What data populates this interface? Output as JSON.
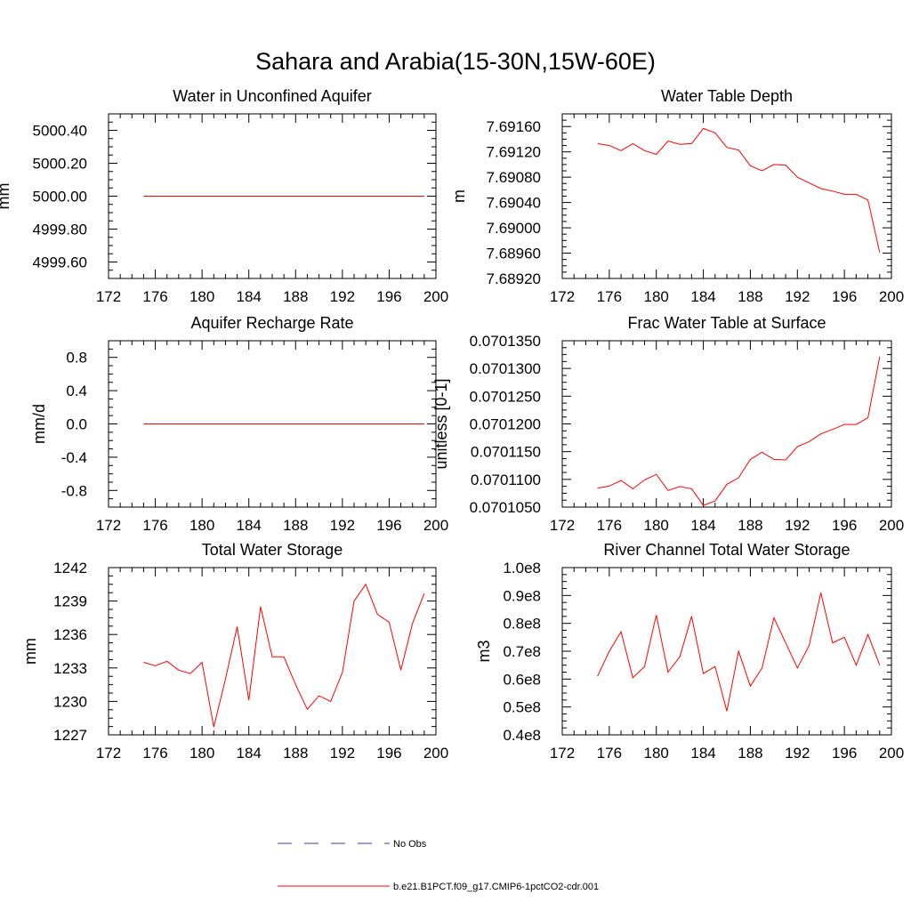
{
  "figure": {
    "title": "Sahara and Arabia(15-30N,15W-60E)"
  },
  "legend": {
    "items": [
      {
        "label": "No Obs",
        "color": "#3a3ab0",
        "style": "dashed"
      },
      {
        "label": "b.e21.B1PCT.f09_g17.CMIP6-1pctCO2-cdr.001",
        "color": "#ff0000",
        "style": "solid"
      }
    ]
  },
  "chart_data": [
    {
      "type": "line",
      "title": "Water in Unconfined Aquifer",
      "ylabel": "mm",
      "xlim": [
        172,
        200
      ],
      "xticks": [
        172,
        176,
        180,
        184,
        188,
        192,
        196,
        200
      ],
      "xtick_labels": [
        "172",
        "176",
        "180",
        "184",
        "188",
        "192",
        "196",
        "200"
      ],
      "ylim": [
        4999.5,
        5000.5
      ],
      "yticks": [
        4999.6,
        4999.8,
        5000.0,
        5000.2,
        5000.4
      ],
      "ytick_labels": [
        "4999.60",
        "4999.80",
        "5000.00",
        "5000.20",
        "5000.40"
      ],
      "x": [
        175,
        176,
        177,
        178,
        179,
        180,
        181,
        182,
        183,
        184,
        185,
        186,
        187,
        188,
        189,
        190,
        191,
        192,
        193,
        194,
        195,
        196,
        197,
        198,
        199
      ],
      "series": [
        {
          "color": "#ff0000",
          "values": [
            5000,
            5000,
            5000,
            5000,
            5000,
            5000,
            5000,
            5000,
            5000,
            5000,
            5000,
            5000,
            5000,
            5000,
            5000,
            5000,
            5000,
            5000,
            5000,
            5000,
            5000,
            5000,
            5000,
            5000,
            5000
          ]
        }
      ]
    },
    {
      "type": "line",
      "title": "Water Table Depth",
      "ylabel": "m",
      "xlim": [
        172,
        200
      ],
      "xticks": [
        172,
        176,
        180,
        184,
        188,
        192,
        196,
        200
      ],
      "xtick_labels": [
        "172",
        "176",
        "180",
        "184",
        "188",
        "192",
        "196",
        "200"
      ],
      "ylim": [
        7.6892,
        7.6918
      ],
      "yticks": [
        7.6892,
        7.6896,
        7.69,
        7.6904,
        7.6908,
        7.6912,
        7.6916
      ],
      "ytick_labels": [
        "7.68920",
        "7.68960",
        "7.69000",
        "7.69040",
        "7.69080",
        "7.69120",
        "7.69160"
      ],
      "x": [
        175,
        176,
        177,
        178,
        179,
        180,
        181,
        182,
        183,
        184,
        185,
        186,
        187,
        188,
        189,
        190,
        191,
        192,
        193,
        194,
        195,
        196,
        197,
        198,
        199
      ],
      "series": [
        {
          "color": "#ff0000",
          "values": [
            7.69133,
            7.6913,
            7.69122,
            7.69133,
            7.69122,
            7.69116,
            7.69137,
            7.69132,
            7.69133,
            7.69157,
            7.6915,
            7.69127,
            7.69123,
            7.69098,
            7.6909,
            7.691,
            7.69099,
            7.6908,
            7.69071,
            7.69062,
            7.69058,
            7.69053,
            7.69053,
            7.69044,
            7.68961
          ]
        }
      ]
    },
    {
      "type": "line",
      "title": "Aquifer Recharge Rate",
      "ylabel": "mm/d",
      "xlim": [
        172,
        200
      ],
      "xticks": [
        172,
        176,
        180,
        184,
        188,
        192,
        196,
        200
      ],
      "xtick_labels": [
        "172",
        "176",
        "180",
        "184",
        "188",
        "192",
        "196",
        "200"
      ],
      "ylim": [
        -1.0,
        1.0
      ],
      "yticks": [
        -0.8,
        -0.4,
        0.0,
        0.4,
        0.8
      ],
      "ytick_labels": [
        "-0.8",
        "-0.4",
        "0.0",
        "0.4",
        "0.8"
      ],
      "x": [
        175,
        176,
        177,
        178,
        179,
        180,
        181,
        182,
        183,
        184,
        185,
        186,
        187,
        188,
        189,
        190,
        191,
        192,
        193,
        194,
        195,
        196,
        197,
        198,
        199
      ],
      "series": [
        {
          "color": "#ff0000",
          "values": [
            0,
            0,
            0,
            0,
            0,
            0,
            0,
            0,
            0,
            0,
            0,
            0,
            0,
            0,
            0,
            0,
            0,
            0,
            0,
            0,
            0,
            0,
            0,
            0,
            0
          ]
        }
      ]
    },
    {
      "type": "line",
      "title": "Frac Water Table at Surface",
      "ylabel": "unitless [0-1]",
      "xlim": [
        172,
        200
      ],
      "xticks": [
        172,
        176,
        180,
        184,
        188,
        192,
        196,
        200
      ],
      "xtick_labels": [
        "172",
        "176",
        "180",
        "184",
        "188",
        "192",
        "196",
        "200"
      ],
      "ylim": [
        0.070105,
        0.070135
      ],
      "yticks": [
        0.070105,
        0.07011,
        0.070115,
        0.07012,
        0.070125,
        0.07013,
        0.070135
      ],
      "ytick_labels": [
        "0.0701050",
        "0.0701100",
        "0.0701150",
        "0.0701200",
        "0.0701250",
        "0.0701300",
        "0.0701350"
      ],
      "x": [
        175,
        176,
        177,
        178,
        179,
        180,
        181,
        182,
        183,
        184,
        185,
        186,
        187,
        188,
        189,
        190,
        191,
        192,
        193,
        194,
        195,
        196,
        197,
        198,
        199
      ],
      "series": [
        {
          "color": "#ff0000",
          "values": [
            0.0701084,
            0.0701088,
            0.0701098,
            0.0701083,
            0.0701099,
            0.0701109,
            0.070108,
            0.0701087,
            0.0701083,
            0.0701053,
            0.0701061,
            0.0701091,
            0.0701103,
            0.0701136,
            0.0701149,
            0.0701136,
            0.0701135,
            0.0701159,
            0.0701168,
            0.0701182,
            0.070119,
            0.0701199,
            0.0701199,
            0.0701211,
            0.0701321
          ]
        }
      ]
    },
    {
      "type": "line",
      "title": "Total Water Storage",
      "ylabel": "mm",
      "xlim": [
        172,
        200
      ],
      "xticks": [
        172,
        176,
        180,
        184,
        188,
        192,
        196,
        200
      ],
      "xtick_labels": [
        "172",
        "176",
        "180",
        "184",
        "188",
        "192",
        "196",
        "200"
      ],
      "ylim": [
        1227,
        1242
      ],
      "yticks": [
        1227,
        1230,
        1233,
        1236,
        1239,
        1242
      ],
      "ytick_labels": [
        "1227",
        "1230",
        "1233",
        "1236",
        "1239",
        "1242"
      ],
      "x": [
        175,
        176,
        177,
        178,
        179,
        180,
        181,
        182,
        183,
        184,
        185,
        186,
        187,
        188,
        189,
        190,
        191,
        192,
        193,
        194,
        195,
        196,
        197,
        198,
        199
      ],
      "series": [
        {
          "color": "#ff0000",
          "values": [
            1233.5,
            1233.2,
            1233.6,
            1232.8,
            1232.5,
            1233.5,
            1227.7,
            1232.0,
            1236.7,
            1230.1,
            1238.5,
            1234.0,
            1234.0,
            1231.5,
            1229.3,
            1230.5,
            1230.0,
            1232.6,
            1239.0,
            1240.5,
            1237.8,
            1237.1,
            1232.8,
            1237.0,
            1239.7
          ]
        }
      ]
    },
    {
      "type": "line",
      "title": "River Channel Total Water Storage",
      "ylabel": "m3",
      "xlim": [
        172,
        200
      ],
      "xticks": [
        172,
        176,
        180,
        184,
        188,
        192,
        196,
        200
      ],
      "xtick_labels": [
        "172",
        "176",
        "180",
        "184",
        "188",
        "192",
        "196",
        "200"
      ],
      "ylim": [
        40000000,
        100000000
      ],
      "yticks": [
        40000000,
        50000000,
        60000000,
        70000000,
        80000000,
        90000000,
        100000000
      ],
      "ytick_labels": [
        "0.4e8",
        "0.5e8",
        "0.6e8",
        "0.7e8",
        "0.8e8",
        "0.9e8",
        "1.0e8"
      ],
      "x": [
        175,
        176,
        177,
        178,
        179,
        180,
        181,
        182,
        183,
        184,
        185,
        186,
        187,
        188,
        189,
        190,
        191,
        192,
        193,
        194,
        195,
        196,
        197,
        198,
        199
      ],
      "series": [
        {
          "color": "#ff0000",
          "values": [
            61000000,
            70000000,
            77000000,
            60500000,
            64500000,
            83000000,
            62500000,
            68000000,
            82500000,
            62000000,
            64500000,
            48500000,
            70000000,
            57500000,
            64000000,
            82000000,
            73000000,
            64000000,
            72000000,
            91000000,
            73000000,
            75000000,
            65000000,
            76000000,
            65000000
          ]
        }
      ]
    }
  ]
}
